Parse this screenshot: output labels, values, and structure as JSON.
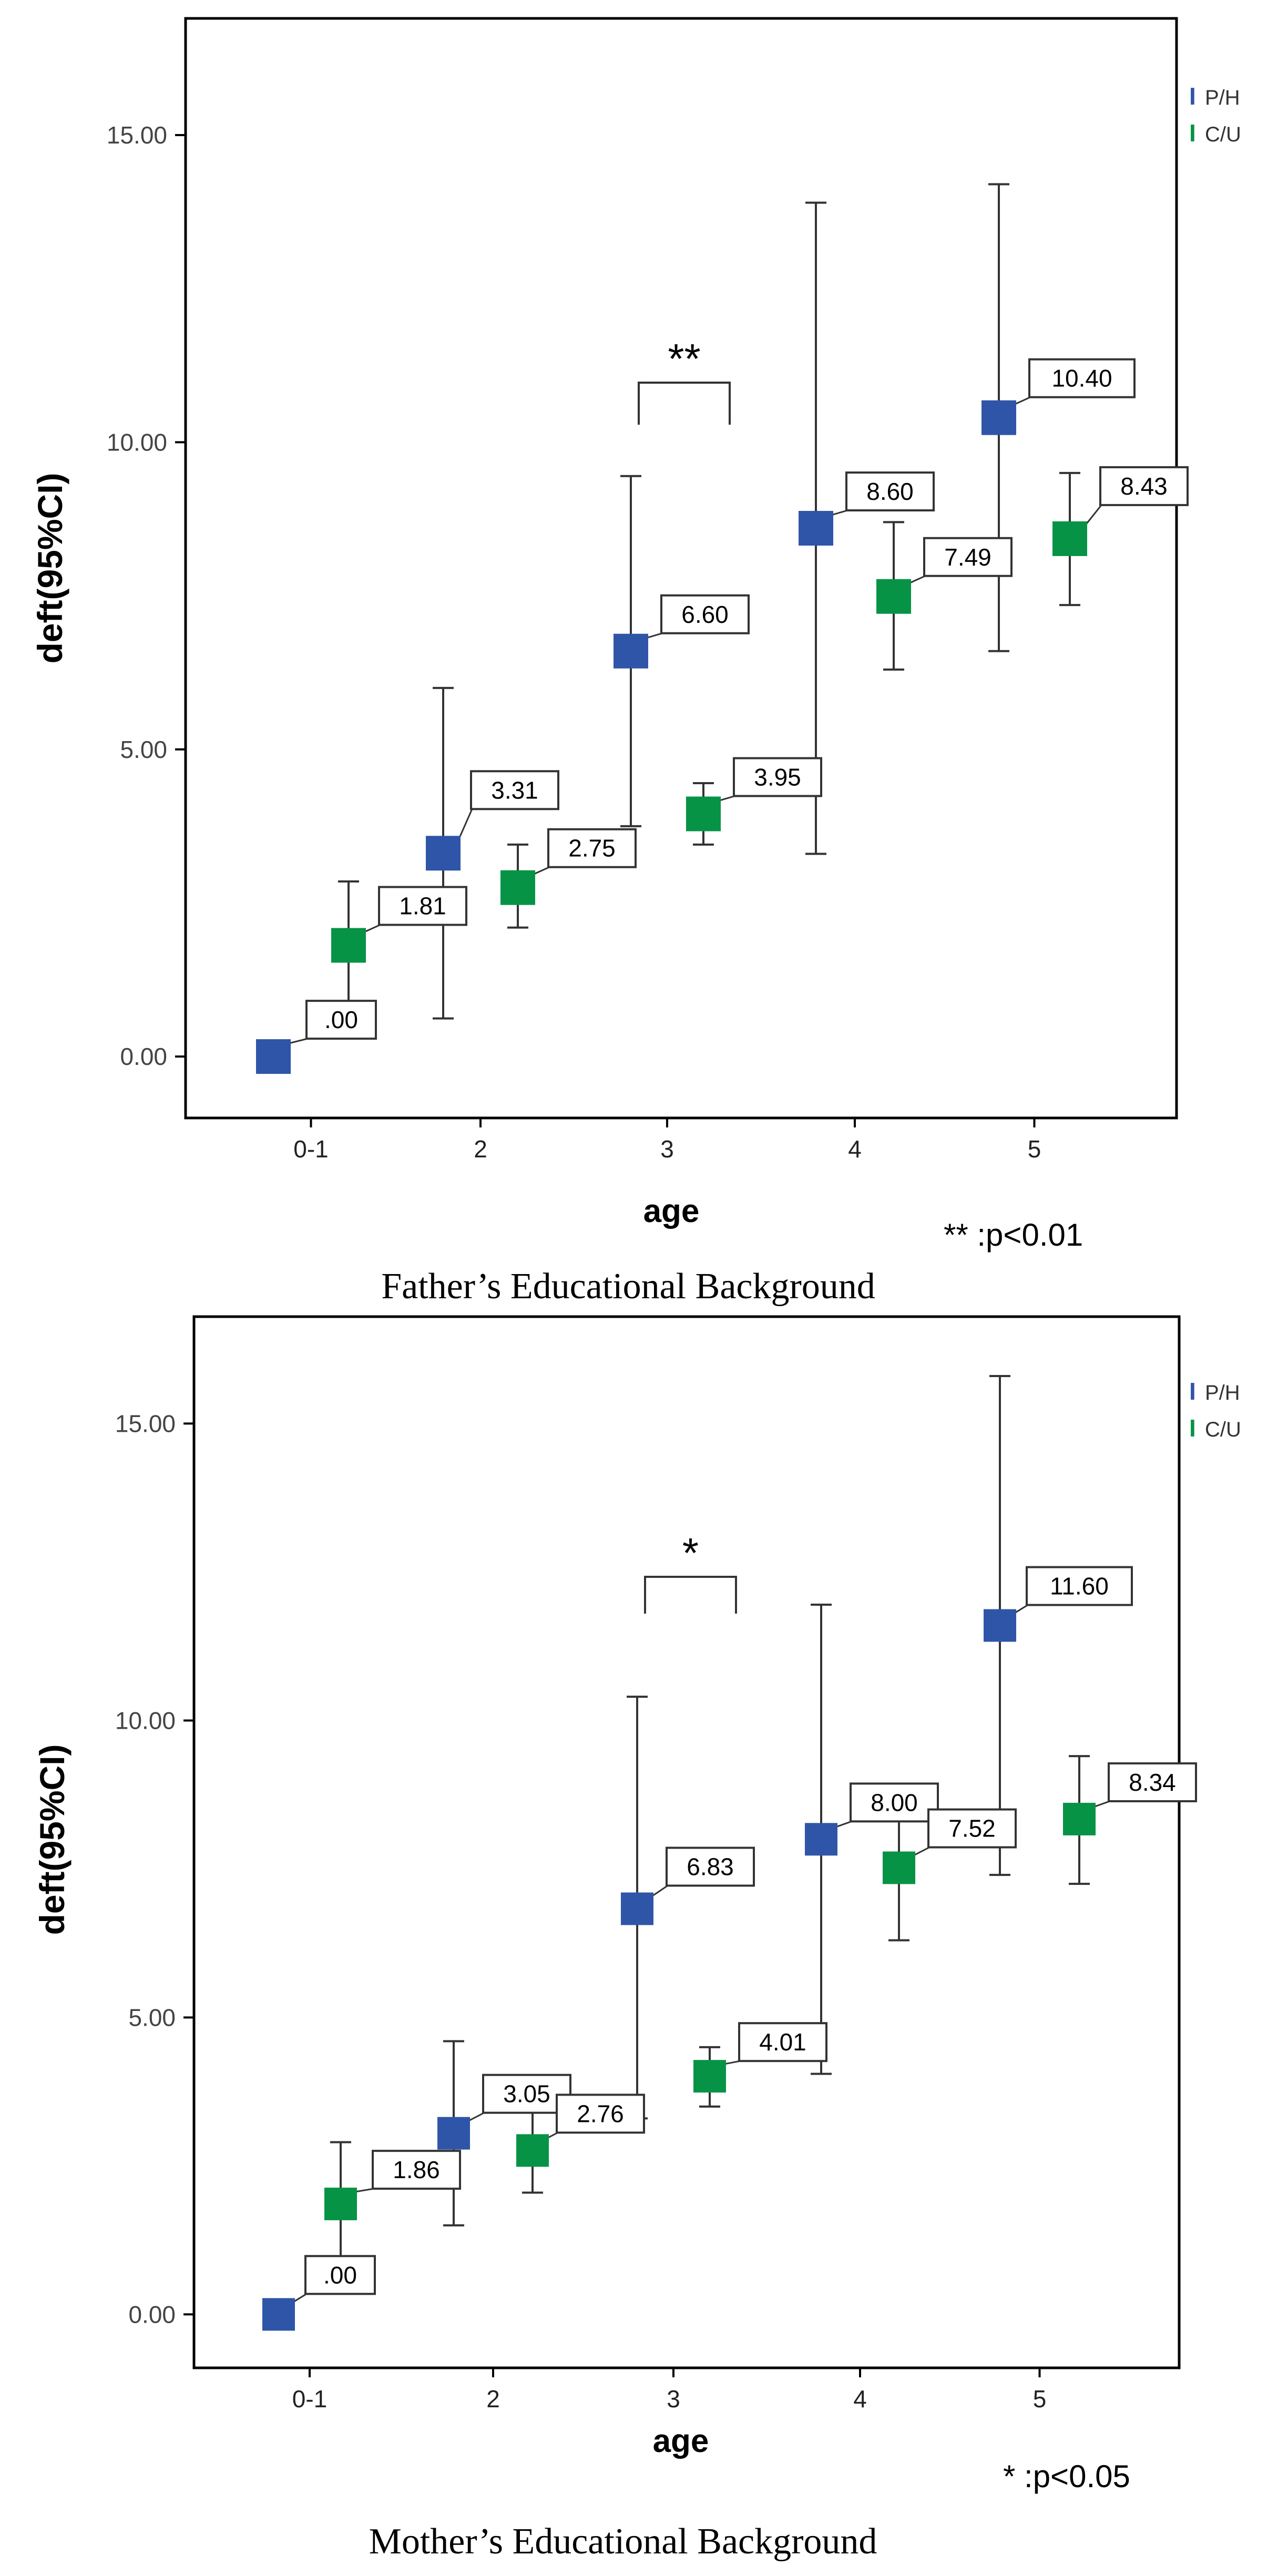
{
  "colors": {
    "ph": "#2f55a8",
    "cu": "#079346",
    "axis": "#000000",
    "text": "#000000",
    "grid": "#000000"
  },
  "chart_data": [
    {
      "type": "scatter",
      "name": "father",
      "caption": "Father’s Educational Background",
      "xlabel": "age",
      "ylabel": "deft(95%CI)",
      "categories": [
        "0-1",
        "2",
        "3",
        "4",
        "5"
      ],
      "ylim": [
        -1.0,
        16.9
      ],
      "yticks": [
        0,
        5,
        10,
        15
      ],
      "ytick_labels": [
        "0.00",
        "5.00",
        "10.00",
        "15.00"
      ],
      "legend": [
        {
          "name": "P/H",
          "symbol": "I"
        },
        {
          "name": "C/U",
          "symbol": "I"
        }
      ],
      "series": [
        {
          "name": "P/H",
          "means": [
            0.0,
            3.31,
            6.6,
            8.6,
            10.4
          ],
          "labels": [
            ".00",
            "3.31",
            "6.60",
            "8.60",
            "10.40"
          ],
          "ci_low": [
            null,
            0.62,
            3.75,
            3.3,
            6.6
          ],
          "ci_high": [
            null,
            6.0,
            9.45,
            13.9,
            14.2
          ]
        },
        {
          "name": "C/U",
          "means": [
            1.81,
            2.75,
            3.95,
            7.49,
            8.43
          ],
          "labels": [
            "1.81",
            "2.75",
            "3.95",
            "7.49",
            "8.43"
          ],
          "ci_low": [
            0.85,
            2.1,
            3.45,
            6.3,
            7.35
          ],
          "ci_high": [
            2.85,
            3.45,
            4.45,
            8.7,
            9.5
          ]
        }
      ],
      "significance": {
        "category_index": 2,
        "marker": "**",
        "note": "** :p<0.01"
      }
    },
    {
      "type": "scatter",
      "name": "mother",
      "caption": "Mother’s Educational Background",
      "xlabel": "age",
      "ylabel": "deft(95%CI)",
      "categories": [
        "0-1",
        "2",
        "3",
        "4",
        "5"
      ],
      "ylim": [
        -0.9,
        16.8
      ],
      "yticks": [
        0,
        5,
        10,
        15
      ],
      "ytick_labels": [
        "0.00",
        "5.00",
        "10.00",
        "15.00"
      ],
      "legend": [
        {
          "name": "P/H",
          "symbol": "I"
        },
        {
          "name": "C/U",
          "symbol": "I"
        }
      ],
      "series": [
        {
          "name": "P/H",
          "means": [
            0.0,
            3.05,
            6.83,
            8.0,
            11.6
          ],
          "labels": [
            ".00",
            "3.05",
            "6.83",
            "8.00",
            "11.60"
          ],
          "ci_low": [
            null,
            1.5,
            3.3,
            4.05,
            7.4
          ],
          "ci_high": [
            null,
            4.6,
            10.4,
            11.95,
            15.8
          ]
        },
        {
          "name": "C/U",
          "means": [
            1.86,
            2.76,
            4.01,
            7.52,
            8.34
          ],
          "labels": [
            "1.86",
            "2.76",
            "4.01",
            "7.52",
            "8.34"
          ],
          "ci_low": [
            0.85,
            2.05,
            3.5,
            6.3,
            7.25
          ],
          "ci_high": [
            2.9,
            3.5,
            4.5,
            8.75,
            9.4
          ]
        }
      ],
      "significance": {
        "category_index": 2,
        "marker": "*",
        "note": "* :p<0.05"
      }
    }
  ]
}
